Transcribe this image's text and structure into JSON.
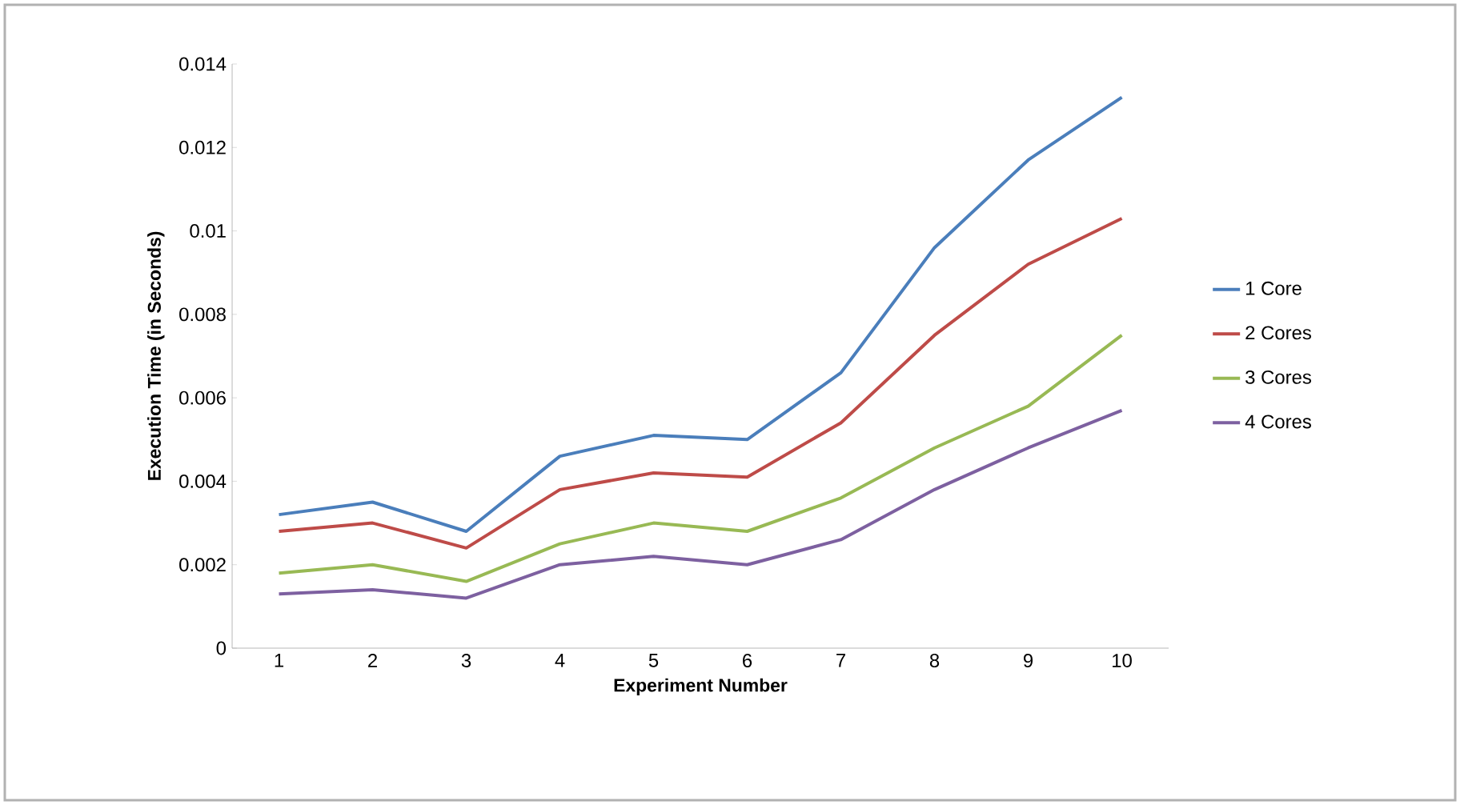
{
  "chart_data": {
    "type": "line",
    "xlabel": "Experiment Number",
    "ylabel": "Execution Time (in Seconds)",
    "categories": [
      "1",
      "2",
      "3",
      "4",
      "5",
      "6",
      "7",
      "8",
      "9",
      "10"
    ],
    "series": [
      {
        "name": "1 Core",
        "color": "#4a7ebb",
        "values": [
          0.0032,
          0.0035,
          0.0028,
          0.0046,
          0.0051,
          0.005,
          0.0066,
          0.0096,
          0.0117,
          0.0132
        ]
      },
      {
        "name": "2 Cores",
        "color": "#be4b48",
        "values": [
          0.0028,
          0.003,
          0.0024,
          0.0038,
          0.0042,
          0.0041,
          0.0054,
          0.0075,
          0.0092,
          0.0103
        ]
      },
      {
        "name": "3 Cores",
        "color": "#98b954",
        "values": [
          0.0018,
          0.002,
          0.0016,
          0.0025,
          0.003,
          0.0028,
          0.0036,
          0.0048,
          0.0058,
          0.0075
        ]
      },
      {
        "name": "4 Cores",
        "color": "#7d60a0",
        "values": [
          0.0013,
          0.0014,
          0.0012,
          0.002,
          0.0022,
          0.002,
          0.0026,
          0.0038,
          0.0048,
          0.0057
        ]
      }
    ],
    "ylim": [
      0,
      0.014
    ],
    "yticks": [
      0,
      0.002,
      0.004,
      0.006,
      0.008,
      0.01,
      0.012,
      0.014
    ],
    "grid": false,
    "legend": "right",
    "marker": "none",
    "line_style": "solid"
  }
}
